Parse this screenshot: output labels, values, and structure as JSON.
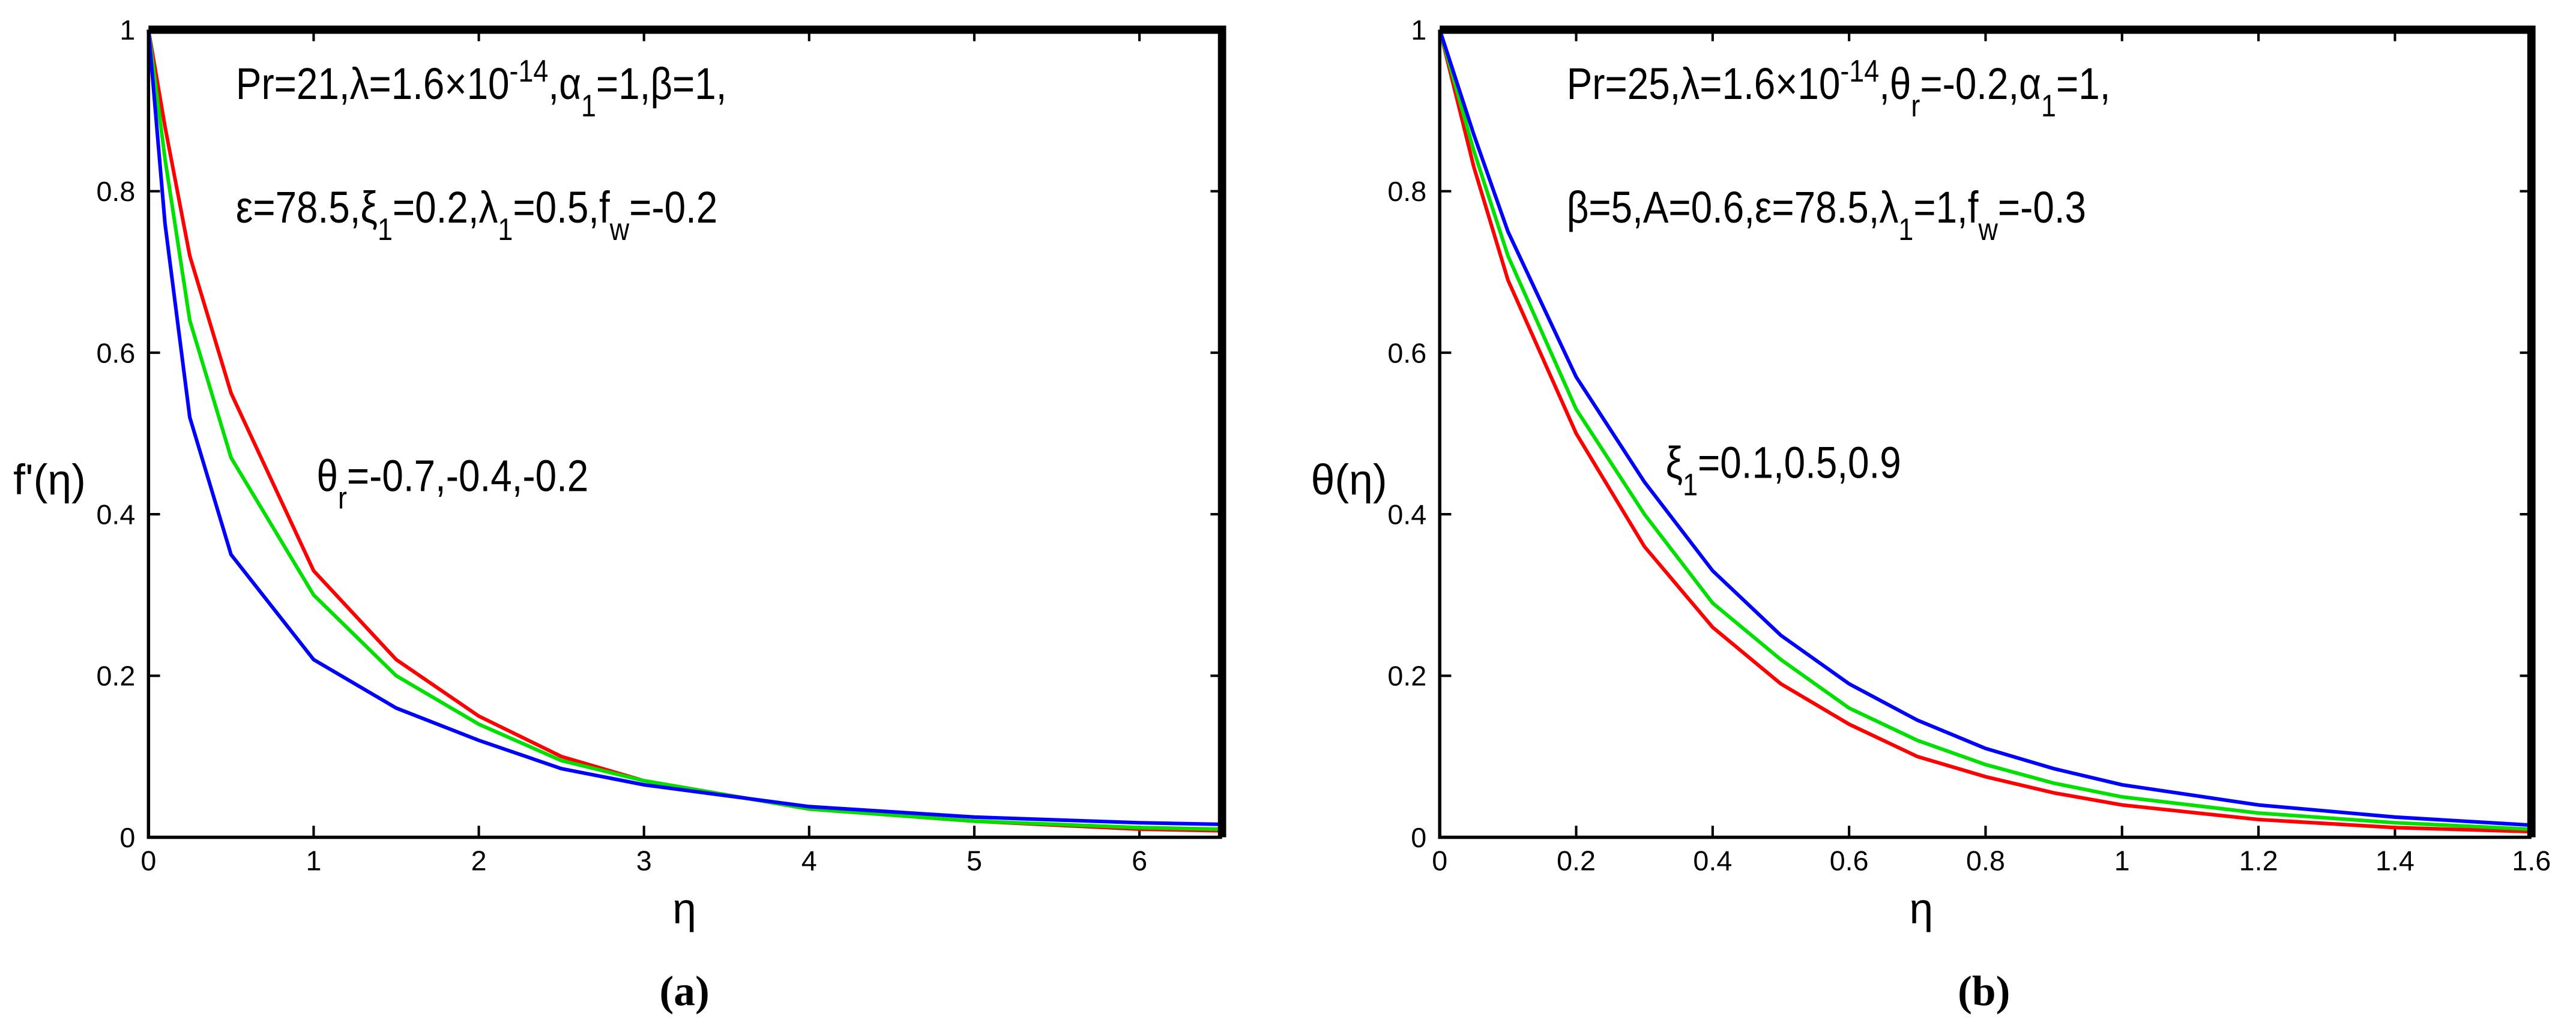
{
  "chart_data": [
    {
      "type": "line",
      "y_label": "f'(η)",
      "x_label": "η",
      "caption": "(a)",
      "x": [
        0,
        0.1,
        0.25,
        0.5,
        1,
        1.5,
        2,
        2.5,
        3,
        4,
        5,
        6,
        6.5
      ],
      "series": [
        {
          "color": "#ff0000",
          "values": [
            1,
            0.88,
            0.72,
            0.55,
            0.33,
            0.22,
            0.15,
            0.1,
            0.07,
            0.035,
            0.02,
            0.01,
            0.008
          ]
        },
        {
          "color": "#00e000",
          "values": [
            1,
            0.84,
            0.64,
            0.47,
            0.3,
            0.2,
            0.14,
            0.095,
            0.07,
            0.035,
            0.02,
            0.012,
            0.01
          ]
        },
        {
          "color": "#0000ff",
          "values": [
            1,
            0.76,
            0.52,
            0.35,
            0.22,
            0.16,
            0.12,
            0.085,
            0.065,
            0.038,
            0.025,
            0.018,
            0.016
          ]
        }
      ],
      "xlim": [
        0,
        6.5
      ],
      "xticks": [
        0,
        1,
        2,
        3,
        4,
        5,
        6
      ],
      "ylim": [
        0,
        1
      ],
      "yticks": [
        0,
        0.2,
        0.4,
        0.6,
        0.8,
        1
      ],
      "annotations": [
        {
          "segments": [
            {
              "text": "Pr=21,λ=1.6×10"
            },
            {
              "text": "-14",
              "script": "sup"
            },
            {
              "text": ",α"
            },
            {
              "text": "1",
              "script": "sub"
            },
            {
              "text": "=1,β=1,"
            }
          ]
        },
        {
          "segments": [
            {
              "text": "ε=78.5,ξ"
            },
            {
              "text": "1",
              "script": "sub"
            },
            {
              "text": "=0.2,λ"
            },
            {
              "text": "1",
              "script": "sub"
            },
            {
              "text": "=0.5,f"
            },
            {
              "text": "w",
              "script": "sub"
            },
            {
              "text": "=-0.2"
            }
          ]
        },
        {
          "segments": [
            {
              "text": "θ"
            },
            {
              "text": "r",
              "script": "sub"
            },
            {
              "text": "=-0.7,-0.4,-0.2"
            }
          ]
        }
      ]
    },
    {
      "type": "line",
      "y_label": "θ(η)",
      "x_label": "η",
      "caption": "(b)",
      "x": [
        0,
        0.05,
        0.1,
        0.2,
        0.3,
        0.4,
        0.5,
        0.6,
        0.7,
        0.8,
        0.9,
        1,
        1.2,
        1.4,
        1.6
      ],
      "series": [
        {
          "color": "#ff0000",
          "values": [
            1,
            0.83,
            0.69,
            0.5,
            0.36,
            0.26,
            0.19,
            0.14,
            0.1,
            0.075,
            0.055,
            0.04,
            0.022,
            0.012,
            0.007
          ]
        },
        {
          "color": "#00e000",
          "values": [
            1,
            0.85,
            0.72,
            0.53,
            0.4,
            0.29,
            0.22,
            0.16,
            0.12,
            0.09,
            0.067,
            0.05,
            0.03,
            0.018,
            0.01
          ]
        },
        {
          "color": "#0000ff",
          "values": [
            1,
            0.87,
            0.75,
            0.57,
            0.44,
            0.33,
            0.25,
            0.19,
            0.145,
            0.11,
            0.085,
            0.065,
            0.04,
            0.025,
            0.015
          ]
        }
      ],
      "xlim": [
        0,
        1.6
      ],
      "xticks": [
        0,
        0.2,
        0.4,
        0.6,
        0.8,
        1,
        1.2,
        1.4,
        1.6
      ],
      "ylim": [
        0,
        1
      ],
      "yticks": [
        0,
        0.2,
        0.4,
        0.6,
        0.8,
        1
      ],
      "annotations": [
        {
          "segments": [
            {
              "text": "Pr=25,λ=1.6×10"
            },
            {
              "text": "-14",
              "script": "sup"
            },
            {
              "text": ",θ"
            },
            {
              "text": "r",
              "script": "sub"
            },
            {
              "text": "=-0.2,α"
            },
            {
              "text": "1",
              "script": "sub"
            },
            {
              "text": "=1,"
            }
          ]
        },
        {
          "segments": [
            {
              "text": "β=5,A=0.6,ε=78.5,λ"
            },
            {
              "text": "1",
              "script": "sub"
            },
            {
              "text": "=1,f"
            },
            {
              "text": "w",
              "script": "sub"
            },
            {
              "text": "=-0.3"
            }
          ]
        },
        {
          "segments": [
            {
              "text": "ξ"
            },
            {
              "text": "1",
              "script": "sub"
            },
            {
              "text": "=0.1,0.5,0.9"
            }
          ]
        }
      ]
    }
  ]
}
